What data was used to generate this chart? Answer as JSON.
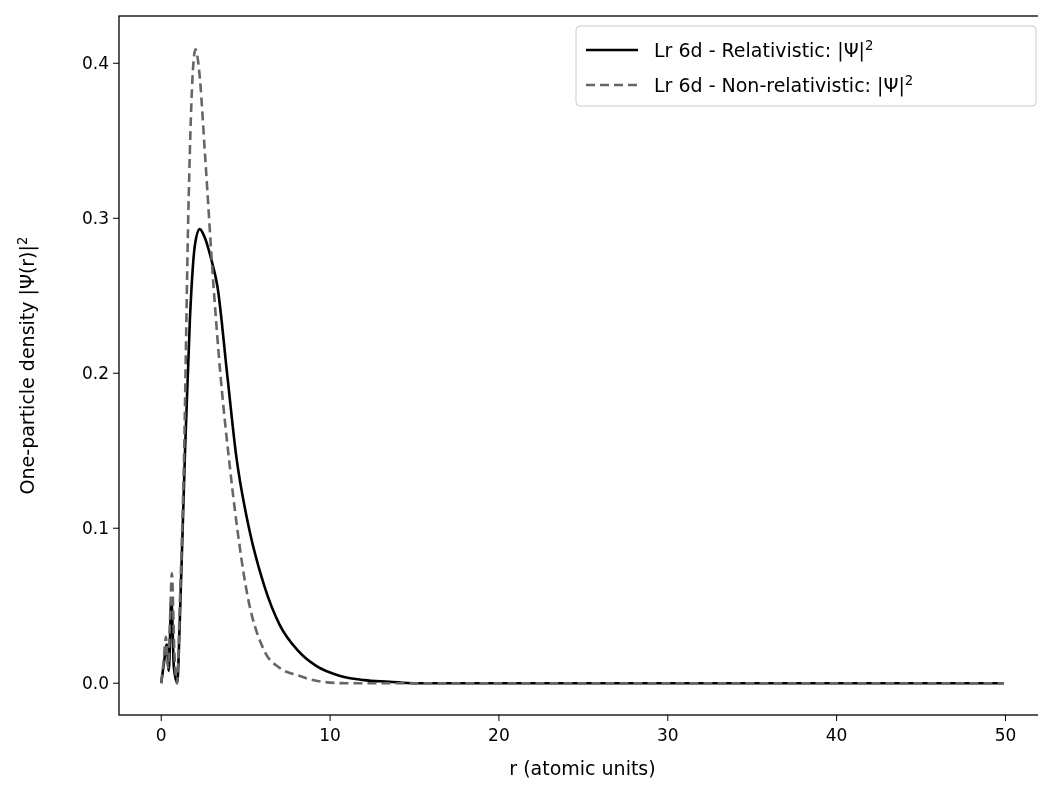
{
  "chart_data": {
    "type": "line",
    "xlabel": "r (atomic units)",
    "ylabel": "One-particle density |Ψ(r)|$^{2}$",
    "xlim": [
      -2.5,
      52.4
    ],
    "ylim": [
      -0.0205,
      0.4305
    ],
    "xticks": [
      0,
      10,
      20,
      30,
      40,
      50
    ],
    "yticks": [
      {
        "value": 0,
        "label": "0.0"
      },
      0.1,
      0.2,
      0.3,
      0.4
    ],
    "grid": false,
    "legend": "top right",
    "marker": "none",
    "series": [
      {
        "name": "Lr 6d - Relativistic: |Ψ|$^{2}$",
        "color": "#000000",
        "line_style": "solid",
        "x": [
          0,
          0.15,
          0.33,
          0.45,
          0.6,
          0.75,
          0.95,
          1.1,
          1.4,
          1.7,
          2.0,
          2.28,
          2.6,
          3.0,
          3.33,
          3.9,
          4.45,
          5.2,
          6.1,
          7.0,
          8.1,
          9.2,
          10.5,
          12,
          13.5,
          15,
          20,
          30,
          40,
          49.9
        ],
        "values": [
          0,
          0.012,
          0.025,
          0.008,
          0.055,
          0.01,
          0.0,
          0.04,
          0.146,
          0.235,
          0.283,
          0.293,
          0.287,
          0.272,
          0.256,
          0.2,
          0.146,
          0.1,
          0.063,
          0.038,
          0.021,
          0.011,
          0.005,
          0.002,
          0.001,
          0,
          0,
          0,
          0,
          0
        ]
      },
      {
        "name": "Lr 6d - Non-relativistic: |Ψ|$^{2}$",
        "color": "#666666",
        "line_style": "dashed",
        "x": [
          0,
          0.15,
          0.28,
          0.4,
          0.52,
          0.63,
          0.78,
          0.94,
          1.1,
          1.35,
          1.6,
          1.85,
          2.03,
          2.25,
          2.6,
          3.1,
          3.5,
          4.0,
          4.5,
          5.0,
          6.1,
          7.0,
          8.1,
          9.5,
          11,
          13,
          20,
          30,
          40,
          49.9
        ],
        "values": [
          0,
          0.015,
          0.03,
          0.01,
          0.04,
          0.071,
          0.02,
          0.0,
          0.05,
          0.146,
          0.3,
          0.39,
          0.409,
          0.395,
          0.34,
          0.256,
          0.2,
          0.146,
          0.1,
          0.063,
          0.021,
          0.01,
          0.005,
          0.001,
          0,
          0,
          0,
          0,
          0,
          0
        ]
      }
    ]
  }
}
